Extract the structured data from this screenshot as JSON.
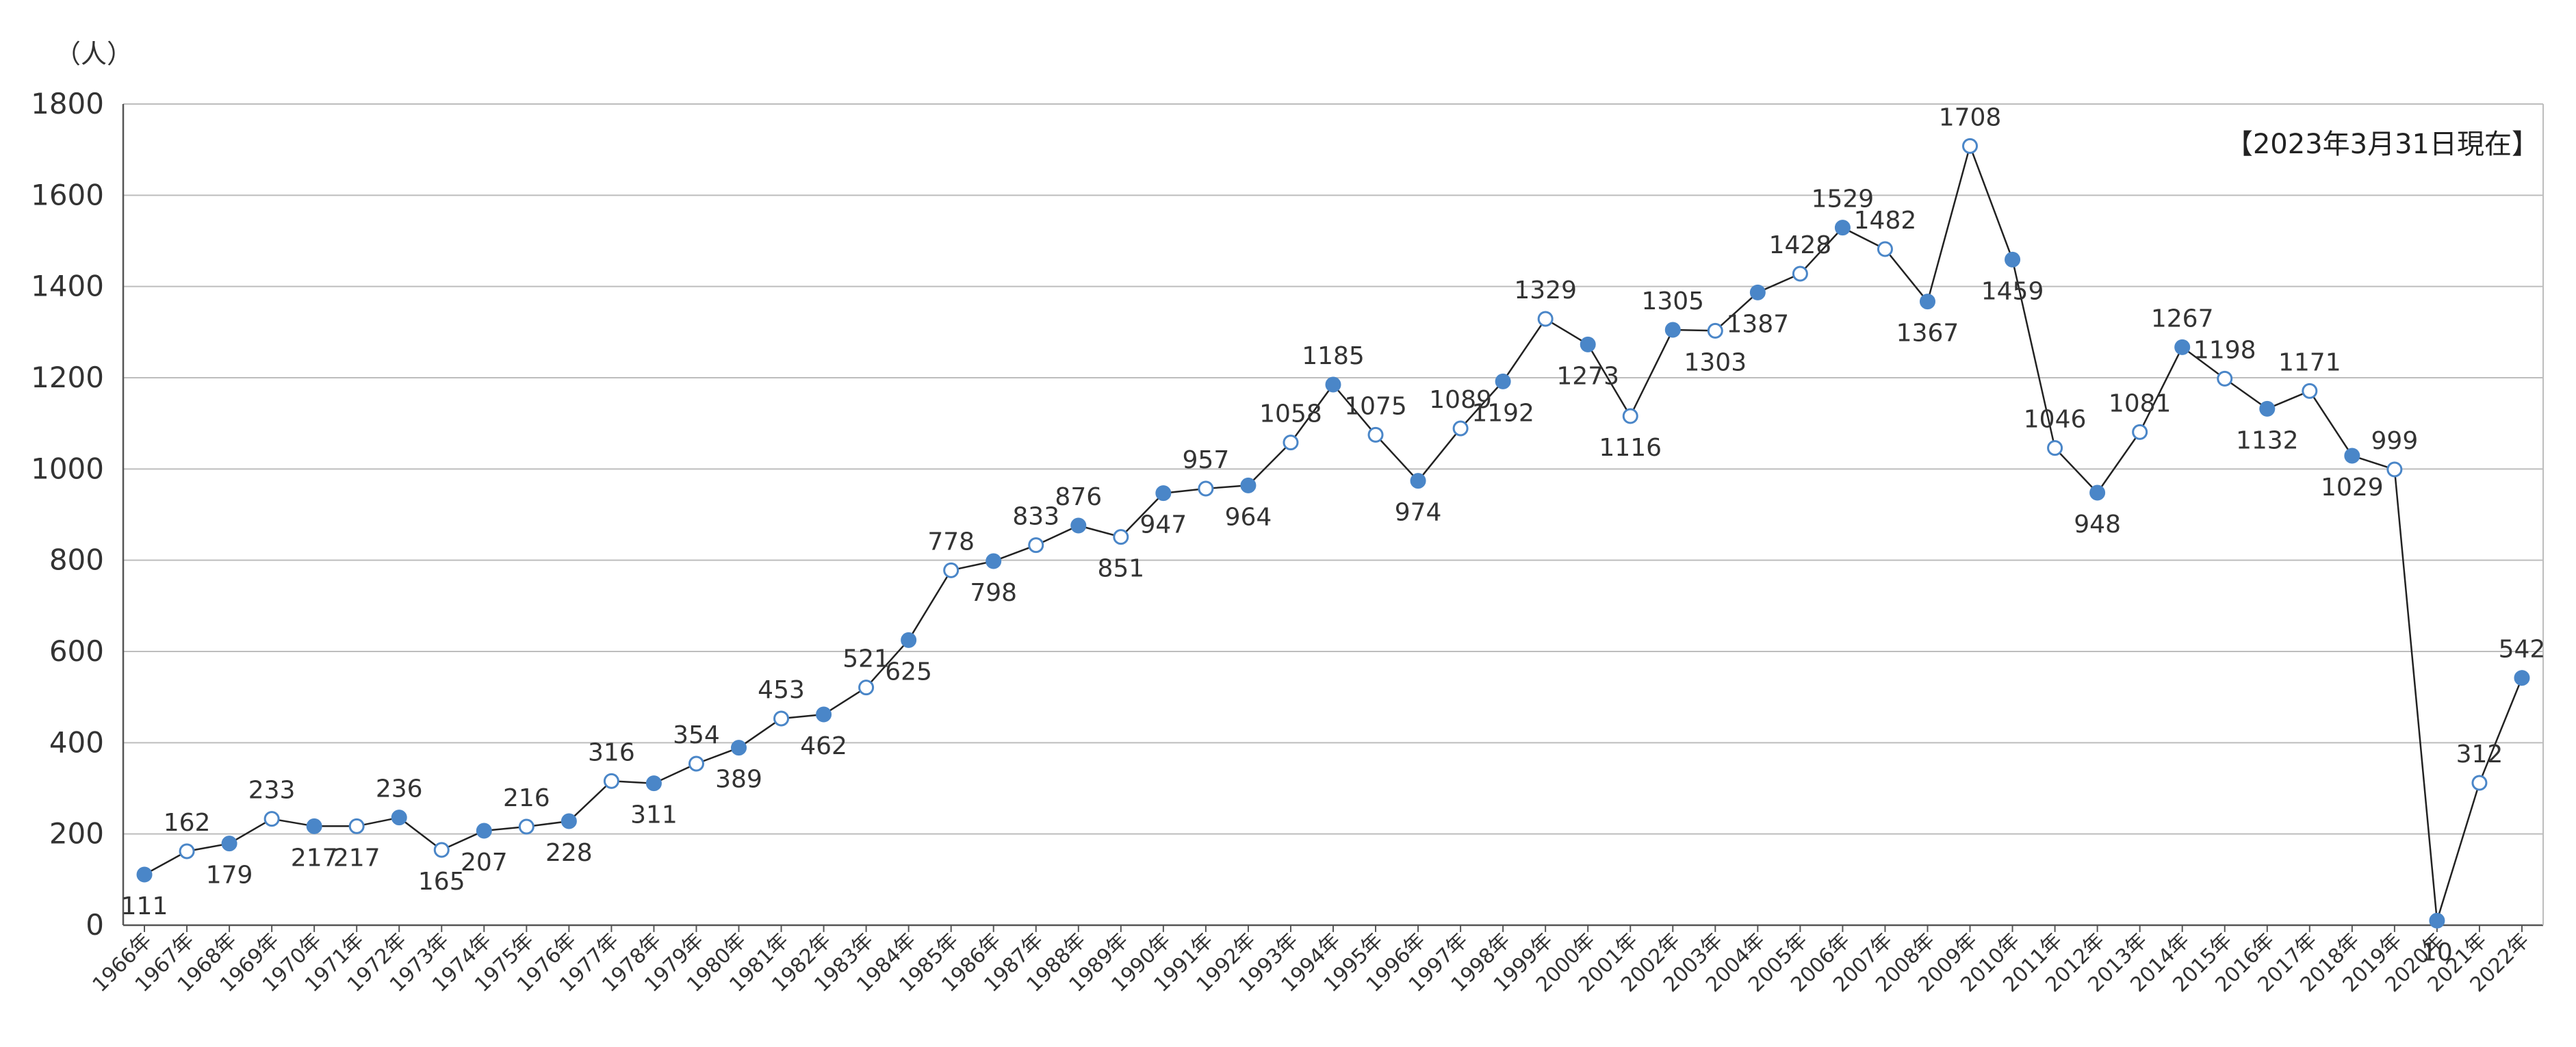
{
  "chart_data": {
    "type": "line",
    "ylabel": "（人）",
    "annotation": "【2023年3月31日現在】",
    "ylim": [
      0,
      1800
    ],
    "yticks": [
      0,
      200,
      400,
      600,
      800,
      1000,
      1200,
      1400,
      1600,
      1800
    ],
    "grid": true,
    "categories": [
      "1966年",
      "1967年",
      "1968年",
      "1969年",
      "1970年",
      "1971年",
      "1972年",
      "1973年",
      "1974年",
      "1975年",
      "1976年",
      "1977年",
      "1978年",
      "1979年",
      "1980年",
      "1981年",
      "1982年",
      "1983年",
      "1984年",
      "1985年",
      "1986年",
      "1987年",
      "1988年",
      "1989年",
      "1990年",
      "1991年",
      "1992年",
      "1993年",
      "1994年",
      "1995年",
      "1996年",
      "1997年",
      "1998年",
      "1999年",
      "2000年",
      "2001年",
      "2002年",
      "2003年",
      "2004年",
      "2005年",
      "2006年",
      "2007年",
      "2008年",
      "2009年",
      "2010年",
      "2011年",
      "2012年",
      "2013年",
      "2014年",
      "2015年",
      "2016年",
      "2017年",
      "2018年",
      "2019年",
      "2020年",
      "2021年",
      "2022年"
    ],
    "series": [
      {
        "values": [
          111,
          162,
          179,
          233,
          217,
          217,
          236,
          165,
          207,
          216,
          228,
          316,
          311,
          354,
          389,
          453,
          462,
          521,
          625,
          778,
          798,
          833,
          876,
          851,
          947,
          957,
          964,
          1058,
          1185,
          1075,
          974,
          1089,
          1192,
          1329,
          1273,
          1116,
          1305,
          1303,
          1387,
          1428,
          1529,
          1482,
          1367,
          1708,
          1459,
          1046,
          948,
          1081,
          1267,
          1198,
          1132,
          1171,
          1029,
          999,
          10,
          312,
          542
        ]
      }
    ],
    "colors": {
      "filled": "#4a86c8",
      "hollow_fill": "#ffffff",
      "hollow_stroke": "#4a86c8",
      "line": "#222222",
      "grid": "#bdbdbd"
    }
  }
}
